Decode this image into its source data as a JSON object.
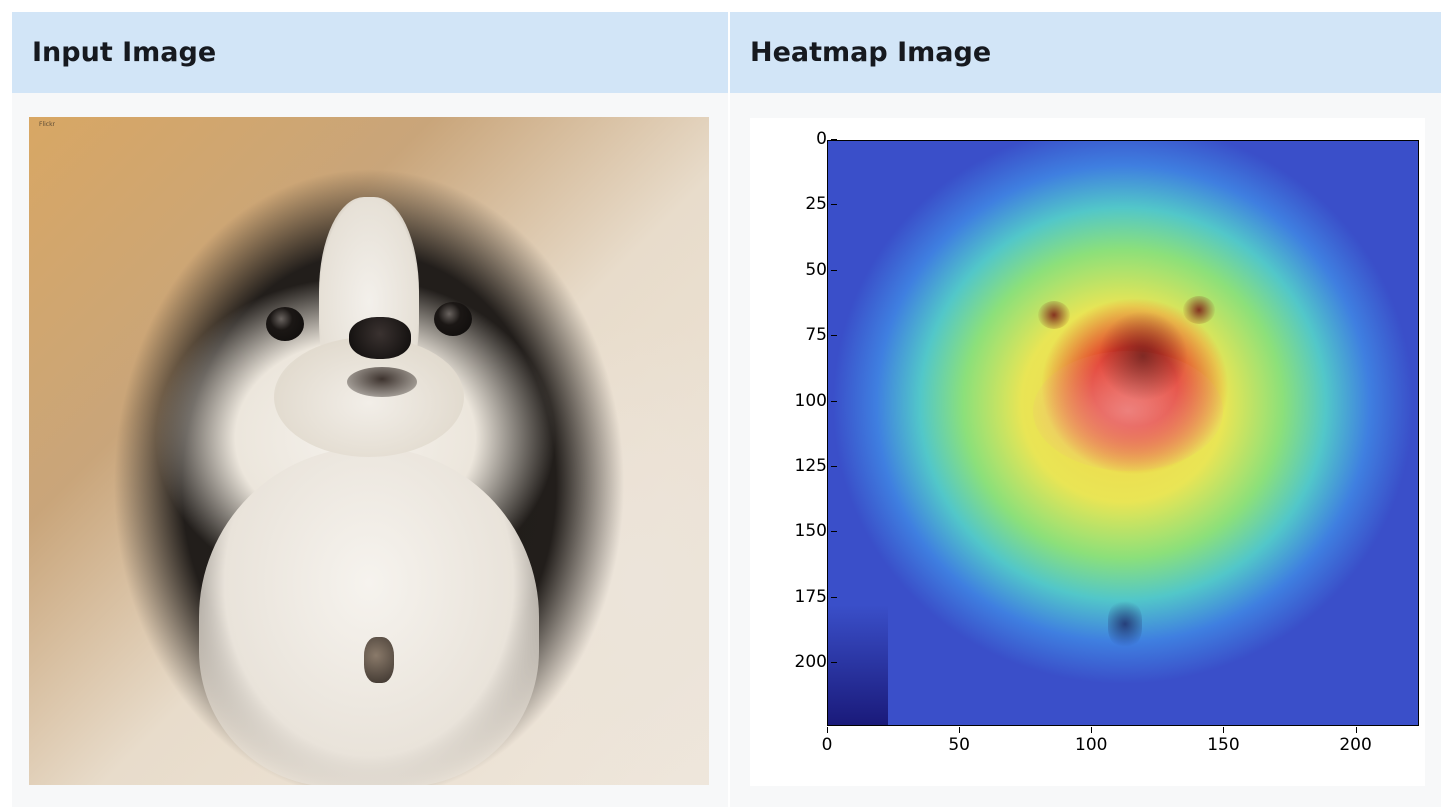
{
  "headers": {
    "input": "Input Image",
    "heatmap": "Heatmap Image"
  },
  "input_image": {
    "alt": "photo of a black and white Japanese Chin dog",
    "stamp": "Flickr"
  },
  "heatmap": {
    "colormap": "jet",
    "y_ticks": [
      "0",
      "25",
      "50",
      "75",
      "100",
      "125",
      "150",
      "175",
      "200"
    ],
    "x_ticks": [
      "0",
      "50",
      "100",
      "150",
      "200"
    ]
  },
  "colors": {
    "header_bg": "#d2e5f7",
    "cell_bg": "#f7f8f9",
    "header_text": "#16191f"
  }
}
